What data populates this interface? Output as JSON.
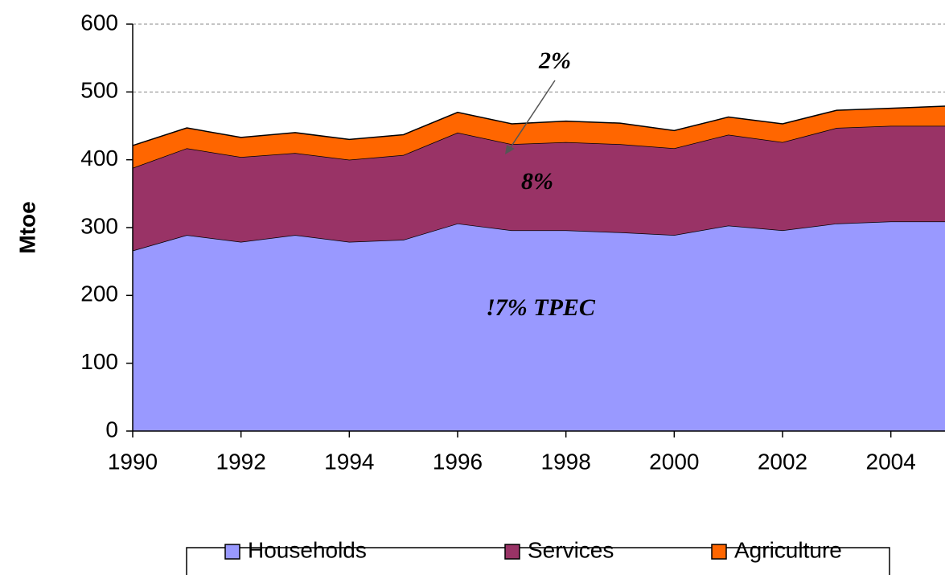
{
  "chart_data": {
    "type": "stacked_area",
    "y_label": "Mtoe",
    "x": [
      1990,
      1991,
      1992,
      1993,
      1994,
      1995,
      1996,
      1997,
      1998,
      1999,
      2000,
      2001,
      2002,
      2003,
      2004,
      2005
    ],
    "series": [
      {
        "name": "Households",
        "color": "#9999ff",
        "values": [
          266,
          289,
          279,
          289,
          279,
          282,
          306,
          296,
          296,
          293,
          289,
          303,
          296,
          306,
          309,
          309
        ]
      },
      {
        "name": "Services",
        "color": "#993366",
        "values": [
          122,
          128,
          125,
          121,
          121,
          125,
          134,
          127,
          130,
          130,
          128,
          134,
          130,
          141,
          141,
          141
        ]
      },
      {
        "name": "Agriculture",
        "color": "#ff6600",
        "values": [
          33,
          30,
          29,
          30,
          30,
          30,
          30,
          30,
          31,
          31,
          26,
          26,
          27,
          26,
          26,
          29
        ]
      }
    ],
    "xlim": [
      1990,
      2005
    ],
    "xticks": [
      1990,
      1992,
      1994,
      1996,
      1998,
      2000,
      2002,
      2004
    ],
    "ylim": [
      0,
      600
    ],
    "yticks": [
      0,
      100,
      200,
      300,
      400,
      500,
      600
    ],
    "grid": true,
    "annotations": [
      {
        "text": "2%"
      },
      {
        "text": "8%"
      },
      {
        "text": "!7% TPEC"
      }
    ],
    "legend": "bottom"
  }
}
